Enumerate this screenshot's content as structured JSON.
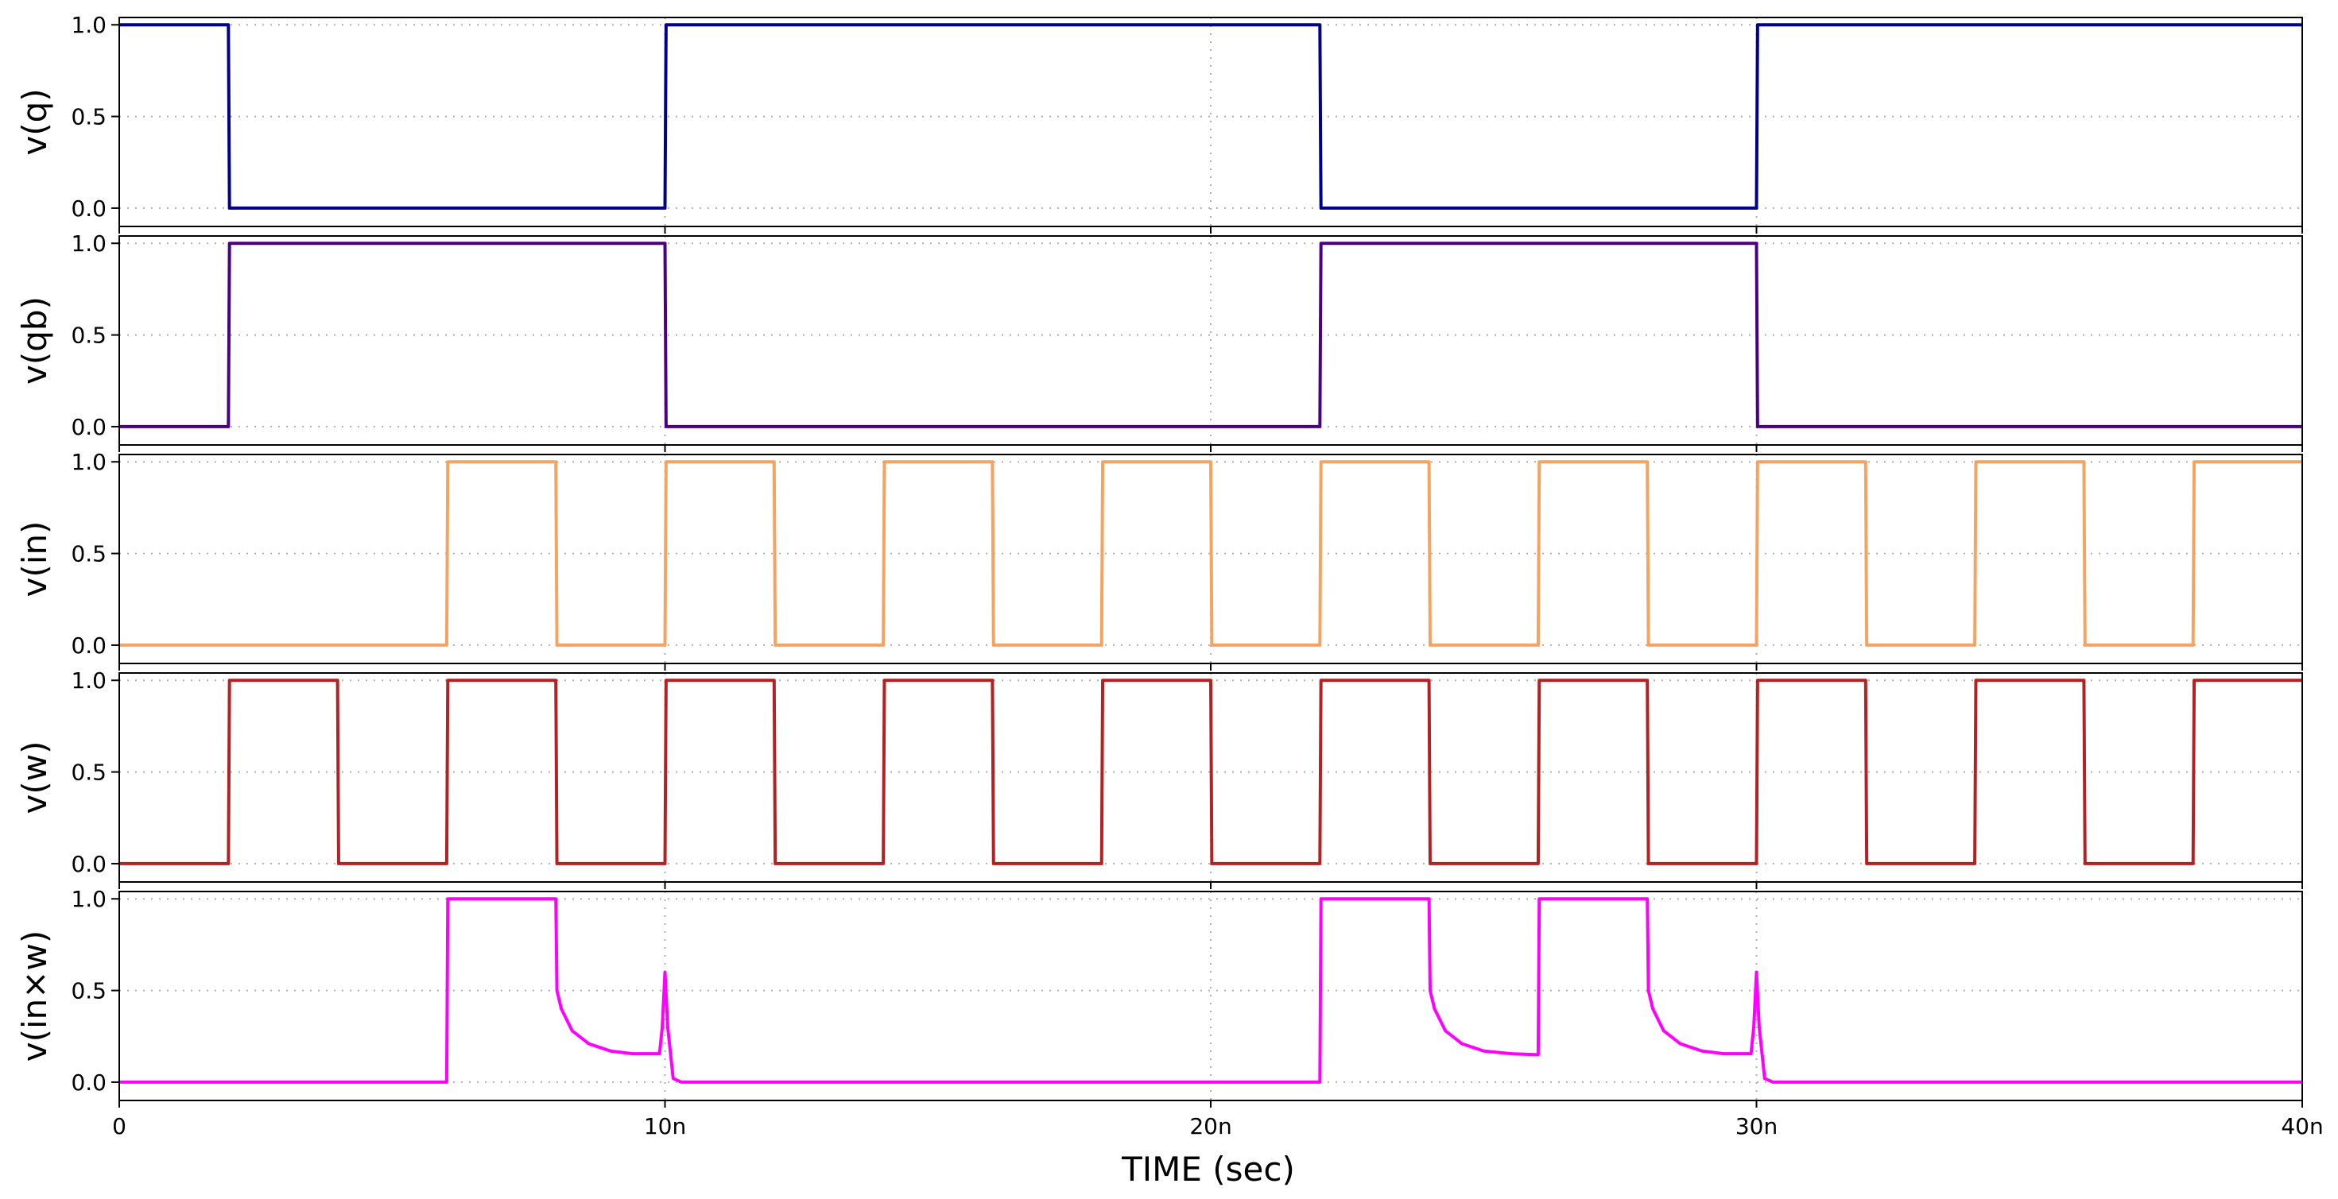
{
  "chart_data": {
    "type": "line",
    "xlabel": "TIME (sec)",
    "xlim": [
      0,
      40
    ],
    "xtick_values": [
      0,
      10,
      20,
      30,
      40
    ],
    "xtick_labels": [
      "0",
      "10n",
      "20n",
      "30n",
      "40n"
    ],
    "ytick_values": [
      0,
      0.5,
      1
    ],
    "ytick_labels": [
      "0.0",
      "0.5",
      "1.0"
    ],
    "ylim": [
      -0.1,
      1.04
    ],
    "grid": true,
    "panels": [
      {
        "ylabel": "v(q)",
        "color": "#00008b",
        "x": [
          0,
          2,
          2.02,
          10,
          10.02,
          22,
          22.02,
          30,
          30.02,
          40
        ],
        "y": [
          1,
          1,
          0,
          0,
          1,
          1,
          0,
          0,
          1,
          1
        ]
      },
      {
        "ylabel": "v(qb)",
        "color": "#4b0082",
        "x": [
          0,
          2,
          2.02,
          10,
          10.02,
          22,
          22.02,
          30,
          30.02,
          40
        ],
        "y": [
          0,
          0,
          1,
          1,
          0,
          0,
          1,
          1,
          0,
          0
        ]
      },
      {
        "ylabel": "v(in)",
        "color": "#f4a460",
        "x": [
          0,
          6,
          6.02,
          8,
          8.02,
          10,
          10.02,
          12,
          12.02,
          14,
          14.02,
          16,
          16.02,
          18,
          18.02,
          20,
          20.02,
          22,
          22.02,
          24,
          24.02,
          26,
          26.02,
          28,
          28.02,
          30,
          30.02,
          32,
          32.02,
          34,
          34.02,
          36,
          36.02,
          38,
          38.02,
          40
        ],
        "y": [
          0,
          0,
          1,
          1,
          0,
          0,
          1,
          1,
          0,
          0,
          1,
          1,
          0,
          0,
          1,
          1,
          0,
          0,
          1,
          1,
          0,
          0,
          1,
          1,
          0,
          0,
          1,
          1,
          0,
          0,
          1,
          1,
          0,
          0,
          1,
          1
        ]
      },
      {
        "ylabel": "v(w)",
        "color": "#b22222",
        "x": [
          0,
          2,
          2.02,
          4,
          4.02,
          6,
          6.02,
          8,
          8.02,
          10,
          10.02,
          12,
          12.02,
          14,
          14.02,
          16,
          16.02,
          18,
          18.02,
          20,
          20.02,
          22,
          22.02,
          24,
          24.02,
          26,
          26.02,
          28,
          28.02,
          30,
          30.02,
          32,
          32.02,
          34,
          34.02,
          36,
          36.02,
          38,
          38.02,
          40
        ],
        "y": [
          0,
          0,
          1,
          1,
          0,
          0,
          1,
          1,
          0,
          0,
          1,
          1,
          0,
          0,
          1,
          1,
          0,
          0,
          1,
          1,
          0,
          0,
          1,
          1,
          0,
          0,
          1,
          1,
          0,
          0,
          1,
          1,
          0,
          0,
          1,
          1,
          0,
          0,
          1,
          1
        ]
      },
      {
        "ylabel": "v(in×w)",
        "color": "#ff00ff",
        "x": [
          0,
          6,
          6.02,
          8,
          8.02,
          8.1,
          8.3,
          8.6,
          9,
          9.4,
          9.9,
          9.95,
          10,
          10.05,
          10.15,
          10.3,
          22,
          22.02,
          24,
          24.02,
          24.1,
          24.3,
          24.6,
          25,
          25.5,
          26,
          26.02,
          28,
          28.02,
          28.1,
          28.3,
          28.6,
          29,
          29.4,
          29.9,
          29.95,
          30,
          30.05,
          30.15,
          30.3,
          40
        ],
        "y": [
          0,
          0,
          1,
          1,
          0.5,
          0.4,
          0.28,
          0.21,
          0.17,
          0.155,
          0.155,
          0.3,
          0.6,
          0.3,
          0.02,
          0,
          0,
          1,
          1,
          0.5,
          0.4,
          0.28,
          0.21,
          0.17,
          0.155,
          0.15,
          1,
          1,
          0.5,
          0.4,
          0.28,
          0.21,
          0.17,
          0.155,
          0.155,
          0.3,
          0.6,
          0.3,
          0.02,
          0,
          0
        ]
      }
    ]
  }
}
